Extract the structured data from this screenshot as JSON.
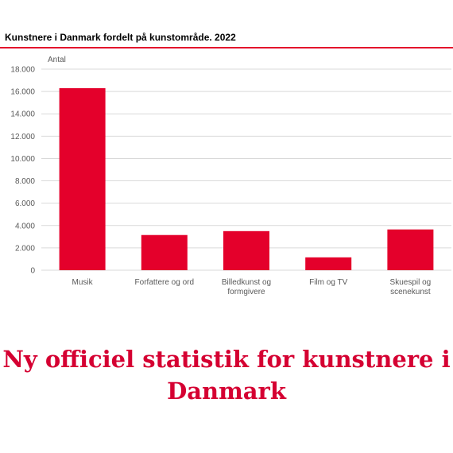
{
  "chart_data": {
    "type": "bar",
    "title": "Kunstnere i Danmark fordelt på kunstområde. 2022",
    "ylabel": "Antal",
    "xlabel": "",
    "categories": [
      [
        "Musik"
      ],
      [
        "Forfattere og ord"
      ],
      [
        "Billedkunst og",
        "formgivere"
      ],
      [
        "Film og TV"
      ],
      [
        "Skuespil og",
        "scenekunst"
      ]
    ],
    "values": [
      16300,
      3150,
      3500,
      1150,
      3650
    ],
    "ylim": [
      0,
      18000
    ],
    "yticks": [
      0,
      2000,
      4000,
      6000,
      8000,
      10000,
      12000,
      14000,
      16000,
      18000
    ],
    "ytick_labels": [
      "0",
      "2.000",
      "4.000",
      "6.000",
      "8.000",
      "10.000",
      "12.000",
      "14.000",
      "16.000",
      "18.000"
    ],
    "grid": true,
    "bar_color": "#e4002b"
  },
  "headline": "Ny officiel statistik for kunstnere i Danmark",
  "colors": {
    "accent": "#e4002b",
    "headline": "#d50032"
  }
}
